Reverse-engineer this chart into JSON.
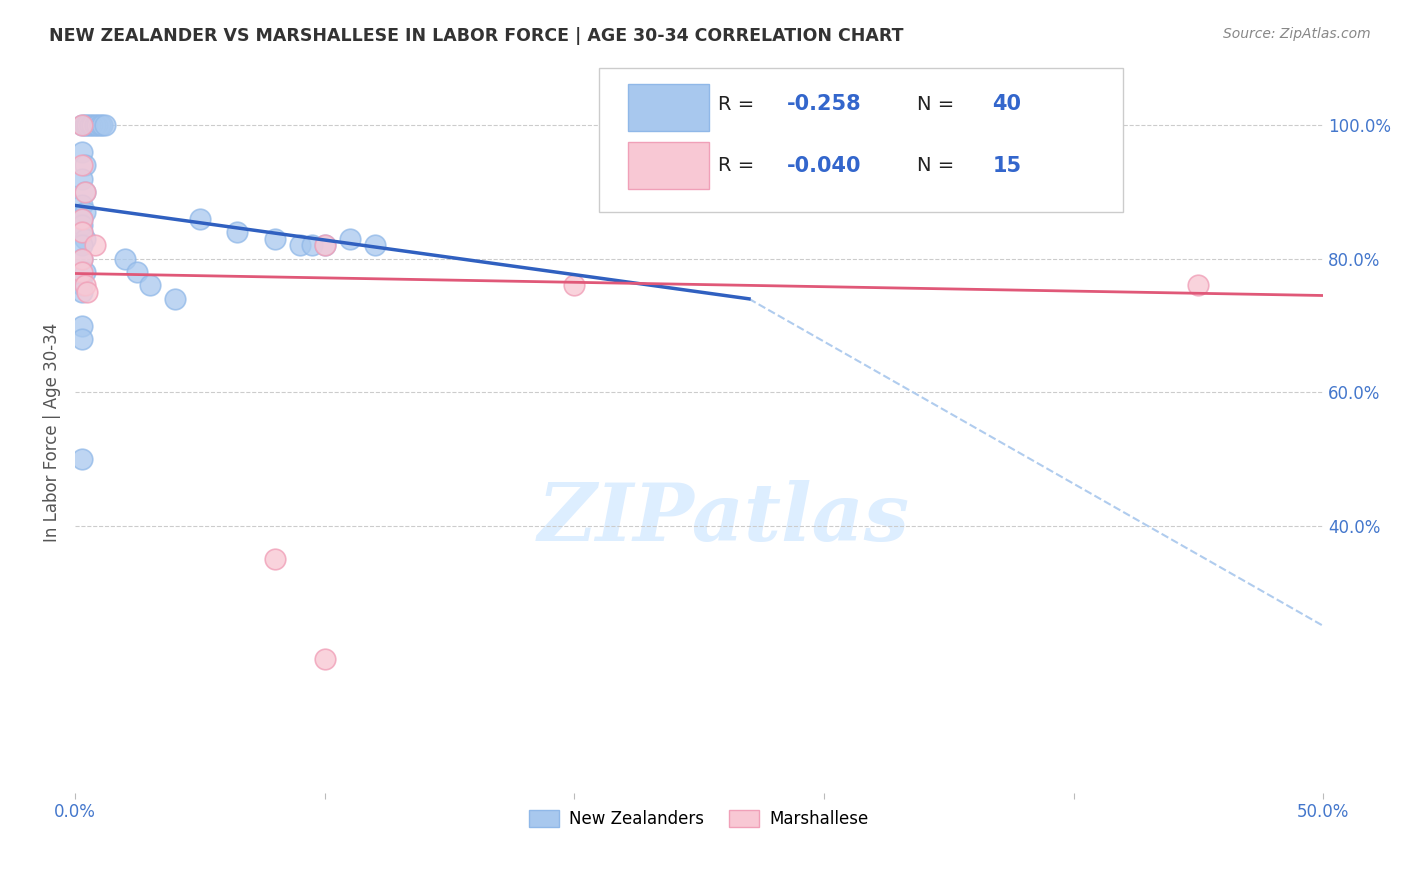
{
  "title": "NEW ZEALANDER VS MARSHALLESE IN LABOR FORCE | AGE 30-34 CORRELATION CHART",
  "source": "Source: ZipAtlas.com",
  "ylabel": "In Labor Force | Age 30-34",
  "xlim": [
    0.0,
    0.5
  ],
  "ylim": [
    0.0,
    1.08
  ],
  "yticks_right": [
    1.0,
    0.8,
    0.6,
    0.4
  ],
  "yticklabels_right": [
    "100.0%",
    "80.0%",
    "60.0%",
    "40.0%"
  ],
  "blue_R": -0.258,
  "blue_N": 40,
  "pink_R": -0.04,
  "pink_N": 15,
  "blue_fill_color": "#A8C8EE",
  "blue_edge_color": "#90B8E8",
  "pink_fill_color": "#F8C8D4",
  "pink_edge_color": "#F0A0B8",
  "blue_line_color": "#3060C0",
  "pink_line_color": "#E05878",
  "dashed_line_color": "#B0CCEE",
  "watermark_color": "#DDEEFF",
  "blue_scatter_x": [
    0.003,
    0.004,
    0.005,
    0.006,
    0.007,
    0.008,
    0.009,
    0.01,
    0.011,
    0.012,
    0.003,
    0.004,
    0.003,
    0.004,
    0.003,
    0.004,
    0.003,
    0.003,
    0.003,
    0.004,
    0.003,
    0.003,
    0.004,
    0.003,
    0.003,
    0.05,
    0.065,
    0.08,
    0.09,
    0.095,
    0.1,
    0.11,
    0.12,
    0.003,
    0.003,
    0.02,
    0.025,
    0.03,
    0.04,
    0.003
  ],
  "blue_scatter_y": [
    1.0,
    1.0,
    1.0,
    1.0,
    1.0,
    1.0,
    1.0,
    1.0,
    1.0,
    1.0,
    0.96,
    0.94,
    0.92,
    0.9,
    0.88,
    0.87,
    0.86,
    0.85,
    0.84,
    0.83,
    0.82,
    0.8,
    0.78,
    0.76,
    0.75,
    0.86,
    0.84,
    0.83,
    0.82,
    0.82,
    0.82,
    0.83,
    0.82,
    0.7,
    0.68,
    0.8,
    0.78,
    0.76,
    0.74,
    0.5
  ],
  "pink_scatter_x": [
    0.003,
    0.003,
    0.004,
    0.003,
    0.003,
    0.008,
    0.003,
    0.003,
    0.004,
    0.005,
    0.1,
    0.2,
    0.08,
    0.45,
    0.1
  ],
  "pink_scatter_y": [
    1.0,
    0.94,
    0.9,
    0.86,
    0.84,
    0.82,
    0.8,
    0.78,
    0.76,
    0.75,
    0.82,
    0.76,
    0.35,
    0.76,
    0.2
  ],
  "blue_trendline_x": [
    0.0,
    0.27
  ],
  "blue_trendline_y": [
    0.88,
    0.74
  ],
  "pink_trendline_x": [
    0.0,
    0.5
  ],
  "pink_trendline_y": [
    0.778,
    0.745
  ],
  "dashed_trendline_x": [
    0.27,
    0.5
  ],
  "dashed_trendline_y": [
    0.74,
    0.25
  ],
  "background_color": "#FFFFFF",
  "grid_color": "#CCCCCC",
  "legend_text_color": "#3366CC",
  "legend_label_color": "#222222"
}
